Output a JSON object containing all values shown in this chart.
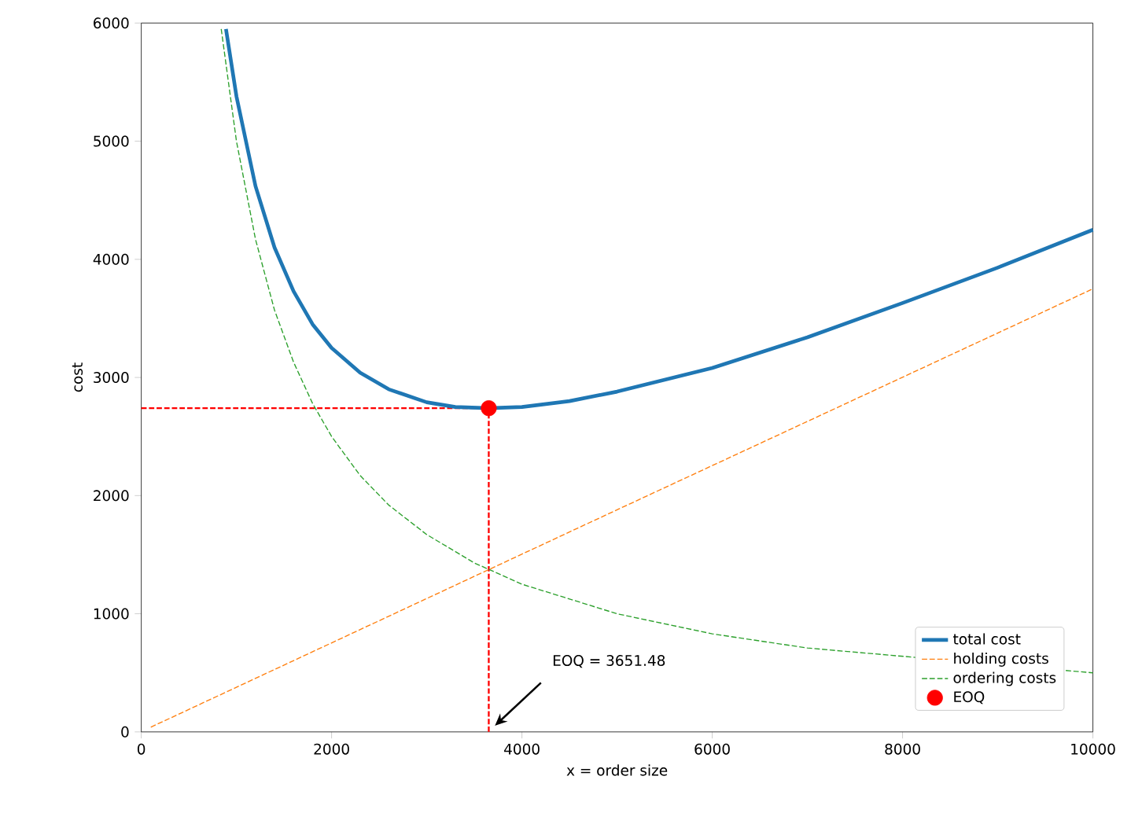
{
  "chart_data": {
    "type": "line",
    "xlabel": "x = order size",
    "ylabel": "cost",
    "xlim": [
      0,
      10000
    ],
    "ylim": [
      0,
      6000
    ],
    "xticks": [
      0,
      2000,
      4000,
      6000,
      8000,
      10000
    ],
    "yticks": [
      0,
      1000,
      2000,
      3000,
      4000,
      5000,
      6000
    ],
    "legend": "bottom right",
    "annotations": [
      "EOQ = 3651.48"
    ],
    "series": [
      {
        "color": "#ff0000",
        "line_style": "dashed",
        "x": [
          0,
          3651.48
        ],
        "values": [
          2740,
          2740
        ]
      },
      {
        "color": "#ff0000",
        "line_style": "dashed",
        "x": [
          3651.48,
          3651.48
        ],
        "values": [
          0,
          2740
        ]
      },
      {
        "name": "total cost",
        "color": "#1f77b4",
        "line_style": "solid",
        "x": [
          890,
          1000,
          1200,
          1400,
          1600,
          1800,
          2000,
          2300,
          2600,
          3000,
          3300,
          3651.48,
          4000,
          4500,
          5000,
          6000,
          7000,
          8000,
          9000,
          10000
        ],
        "values": [
          5950,
          5380,
          4620,
          4100,
          3730,
          3450,
          3250,
          3040,
          2900,
          2790,
          2750,
          2740,
          2750,
          2800,
          2880,
          3080,
          3340,
          3630,
          3930,
          4250
        ]
      },
      {
        "name": "holding costs",
        "color": "#ff7f0e",
        "line_style": "dashed",
        "x": [
          100,
          5000,
          10000
        ],
        "values": [
          40,
          1880,
          3750
        ]
      },
      {
        "name": "ordering costs",
        "color": "#2ca02c",
        "line_style": "dashed",
        "x": [
          840,
          1000,
          1200,
          1400,
          1600,
          1800,
          2000,
          2300,
          2600,
          3000,
          3500,
          4000,
          5000,
          6000,
          7000,
          10000
        ],
        "values": [
          5950,
          5000,
          4170,
          3570,
          3130,
          2780,
          2500,
          2170,
          1920,
          1670,
          1430,
          1250,
          1000,
          830,
          710,
          500
        ]
      },
      {
        "name": "EOQ",
        "type": "scatter",
        "marker": "circle",
        "color": "#ff0000",
        "x": [
          3651.48
        ],
        "values": [
          2740
        ]
      }
    ]
  }
}
